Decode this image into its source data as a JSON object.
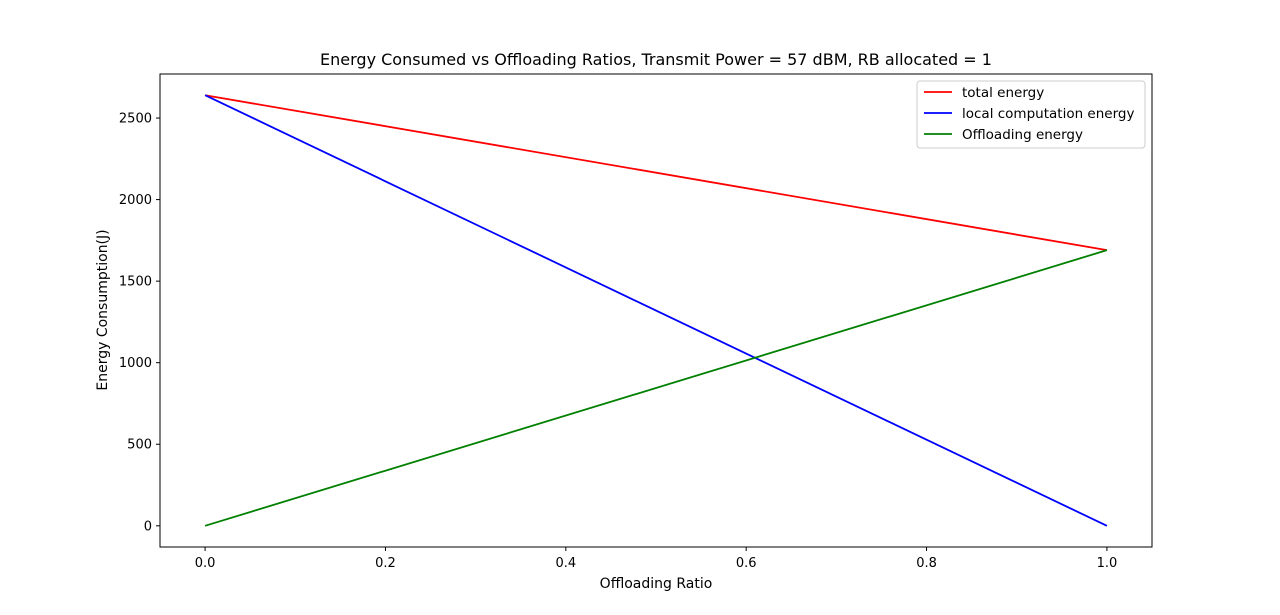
{
  "chart_data": {
    "type": "line",
    "title": "Energy Consumed vs Offloading Ratios, Transmit Power = 57 dBM, RB allocated = 1",
    "xlabel": "Offloading Ratio",
    "ylabel": "Energy Consumption(J)",
    "xlim": [
      -0.05,
      1.05
    ],
    "ylim": [
      -130,
      2770
    ],
    "xticks": [
      0.0,
      0.2,
      0.4,
      0.6,
      0.8,
      1.0
    ],
    "xtick_labels": [
      "0.0",
      "0.2",
      "0.4",
      "0.6",
      "0.8",
      "1.0"
    ],
    "yticks": [
      0,
      500,
      1000,
      1500,
      2000,
      2500
    ],
    "ytick_labels": [
      "0",
      "500",
      "1000",
      "1500",
      "2000",
      "2500"
    ],
    "grid": false,
    "legend_position": "top-right",
    "series": [
      {
        "name": "total energy",
        "color": "#ff0000",
        "x": [
          0.0,
          1.0
        ],
        "y": [
          2640,
          1690
        ]
      },
      {
        "name": "local computation energy",
        "color": "#0000ff",
        "x": [
          0.0,
          1.0
        ],
        "y": [
          2640,
          0
        ]
      },
      {
        "name": "Offloading energy",
        "color": "#008000",
        "x": [
          0.0,
          1.0
        ],
        "y": [
          0,
          1690
        ]
      }
    ]
  }
}
